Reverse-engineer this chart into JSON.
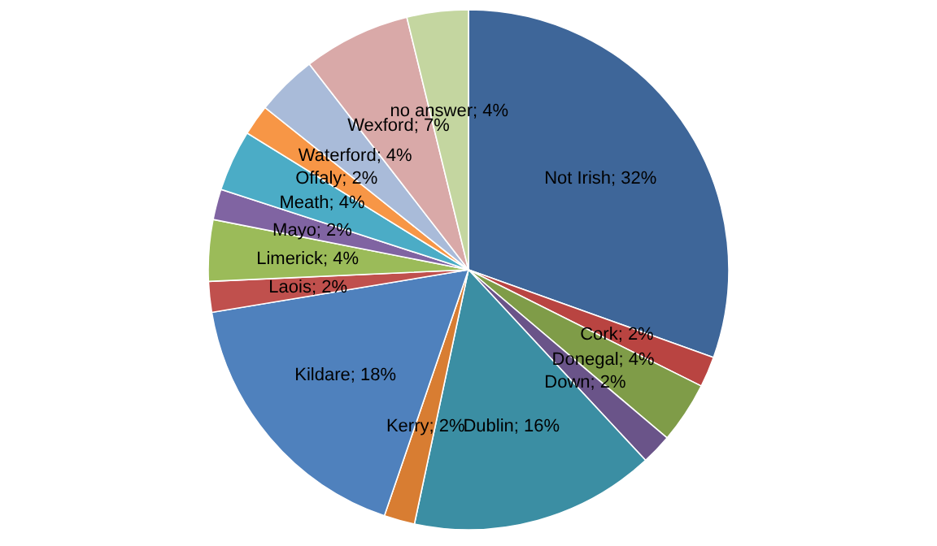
{
  "chart_data": {
    "type": "pie",
    "categories": [
      "Not Irish",
      "Cork",
      "Donegal",
      "Down",
      "Dublin",
      "Kerry",
      "Kildare",
      "Laois",
      "Limerick",
      "Mayo",
      "Meath",
      "Offaly",
      "Waterford",
      "Wexford",
      "no answer"
    ],
    "values": [
      32,
      2,
      4,
      2,
      16,
      2,
      18,
      2,
      4,
      2,
      4,
      2,
      4,
      7,
      4
    ],
    "colors": [
      "#3e6699",
      "#b94441",
      "#7f9c48",
      "#6a5489",
      "#3b8ea3",
      "#d87d32",
      "#4f81bd",
      "#c0504d",
      "#9bbb59",
      "#8064a2",
      "#4bacc6",
      "#f79646",
      "#a9bbd9",
      "#d9a9a8",
      "#c4d6a0"
    ],
    "value_labels": [
      "; 32%",
      "; 2%",
      "; 4%",
      "; 2%",
      "; 16%",
      "; 2%",
      "; 18%",
      "; 2%",
      "; 4%",
      "; 2%",
      "; 4%",
      "; 2%",
      "; 4%",
      "; 7%",
      "; 4%"
    ]
  }
}
